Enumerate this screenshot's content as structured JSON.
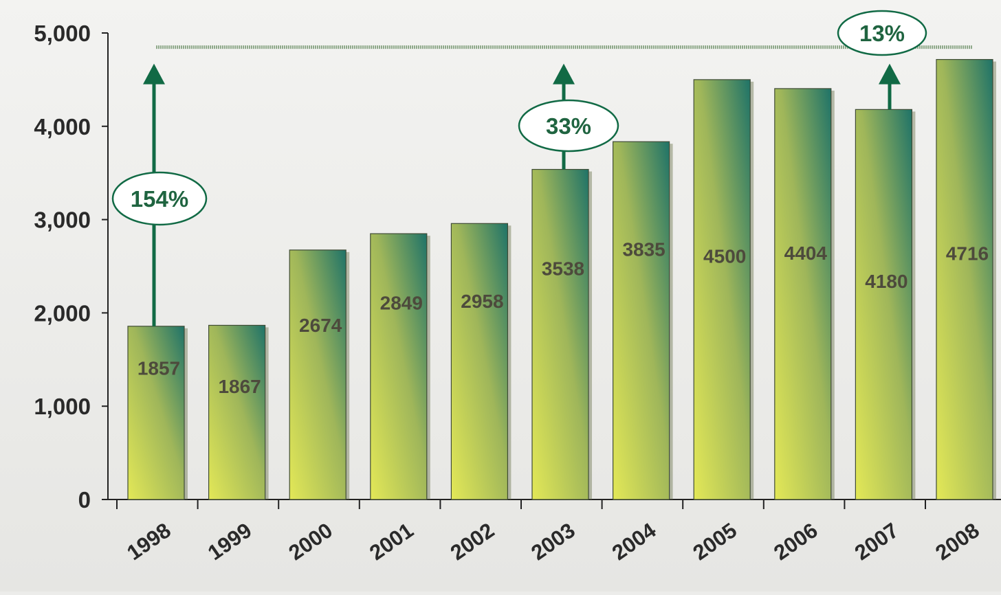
{
  "chart_data": {
    "type": "bar",
    "title": "",
    "xlabel": "",
    "ylabel": "",
    "categories": [
      "1998",
      "1999",
      "2000",
      "2001",
      "2002",
      "2003",
      "2004",
      "2005",
      "2006",
      "2007",
      "2008"
    ],
    "values": [
      1857,
      1867,
      2674,
      2849,
      2958,
      3538,
      3835,
      4500,
      4404,
      4180,
      4716
    ],
    "data_labels": [
      "1857",
      "1867",
      "2674",
      "2849",
      "2958",
      "3538",
      "3835",
      "4500",
      "4404",
      "4180",
      "4716"
    ],
    "ylim": [
      0,
      5000
    ],
    "yticks": [
      0,
      1000,
      2000,
      3000,
      4000,
      5000
    ],
    "ytick_labels": [
      "0",
      "1,000",
      "2,000",
      "3,000",
      "4,000",
      "5,000"
    ],
    "grid": false,
    "legend": "none",
    "reference_line": {
      "value": 4716
    },
    "annotations": [
      {
        "label": "154%",
        "from_category": "1998",
        "from_value": 1857,
        "to_value": 4716
      },
      {
        "label": "33%",
        "from_category": "2003",
        "from_value": 3538,
        "to_value": 4716
      },
      {
        "label": "13%",
        "from_category": "2007",
        "from_value": 4180,
        "to_value": 4716
      }
    ],
    "colors": {
      "bar_light": "#e3e857",
      "bar_mid": "#9fb65a",
      "bar_dark": "#1f7368",
      "arrow": "#116a45",
      "annotation_text": "#1f6440",
      "reference_line": "#8fa98a",
      "background": "#ececea"
    }
  }
}
